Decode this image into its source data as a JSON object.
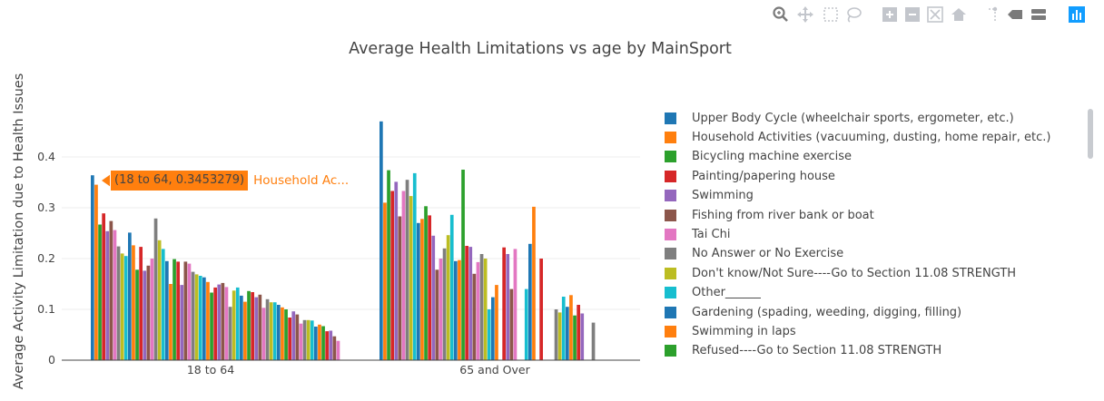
{
  "chart_data": {
    "type": "bar",
    "title": "Average Health Limitations vs age by MainSport",
    "xlabel": "",
    "ylabel": "Average Activity Limitation due to Health Issues",
    "categories": [
      "18 to 64",
      "65 and Over"
    ],
    "yticks": [
      "0",
      "0.1",
      "0.2",
      "0.3",
      "0.4"
    ],
    "ylim": [
      0,
      0.5
    ],
    "grid": true,
    "legend_position": "right",
    "series": [
      {
        "name": "Upper Body Cycle (wheelchair sports, ergometer, etc.)",
        "color": "#1f77b4",
        "values": [
          0.364,
          0.47
        ]
      },
      {
        "name": "Household Activities (vacuuming, dusting, home repair, etc.)",
        "color": "#ff7f0e",
        "values": [
          0.3453279,
          0.31
        ]
      },
      {
        "name": "Bicycling machine exercise",
        "color": "#2ca02c",
        "values": [
          0.267,
          0.374
        ]
      },
      {
        "name": "Painting/papering house",
        "color": "#d62728",
        "values": [
          0.289,
          0.333
        ]
      },
      {
        "name": "Swimming",
        "color": "#9467bd",
        "values": [
          0.254,
          0.351
        ]
      },
      {
        "name": "Fishing from river bank or boat",
        "color": "#8c564b",
        "values": [
          0.274,
          0.283
        ]
      },
      {
        "name": "Tai Chi",
        "color": "#e377c2",
        "values": [
          0.256,
          0.333
        ]
      },
      {
        "name": "No Answer or No Exercise",
        "color": "#7f7f7f",
        "values": [
          0.224,
          0.355
        ]
      },
      {
        "name": "Don't know/Not Sure----Go to Section 11.08 STRENGTH",
        "color": "#bcbd22",
        "values": [
          0.21,
          0.323
        ]
      },
      {
        "name": "Other______",
        "color": "#17becf",
        "values": [
          0.205,
          0.368
        ]
      },
      {
        "name": "Gardening (spading, weeding, digging, filling)",
        "color": "#1f77b4",
        "values": [
          0.251,
          0.27
        ]
      },
      {
        "name": "Swimming in laps",
        "color": "#ff7f0e",
        "values": [
          0.226,
          0.278
        ]
      },
      {
        "name": "Refused----Go to Section 11.08 STRENGTH",
        "color": "#2ca02c",
        "values": [
          0.178,
          0.303
        ]
      }
    ],
    "extra_bars": {
      "colors": [
        "#d62728",
        "#9467bd",
        "#8c564b",
        "#e377c2",
        "#7f7f7f",
        "#bcbd22",
        "#17becf",
        "#1f77b4",
        "#ff7f0e",
        "#2ca02c"
      ],
      "group1": [
        0.223,
        0.176,
        0.186,
        0.2,
        0.279,
        0.236,
        0.219,
        0.195,
        0.15,
        0.199,
        0.194,
        0.148,
        0.194,
        0.19,
        0.174,
        0.169,
        0.166,
        0.163,
        0.154,
        0.133,
        0.143,
        0.149,
        0.152,
        0.144,
        0.105,
        0.137,
        0.143,
        0.127,
        0.115,
        0.136,
        0.134,
        0.124,
        0.129,
        0.103,
        0.12,
        0.114,
        0.114,
        0.109,
        0.104,
        0.1,
        0.084,
        0.096,
        0.09,
        0.072,
        0.079,
        0.079,
        0.078,
        0.066,
        0.07,
        0.067,
        0.057,
        0.058,
        0.047,
        0.038
      ],
      "group2": [
        0.285,
        0.245,
        0.178,
        0.2,
        0.22,
        0.246,
        0.286,
        0.195,
        0.197,
        0.375,
        0.225,
        0.223,
        0.17,
        0.193,
        0.209,
        0.2,
        0.1,
        0.124,
        0.148,
        0,
        0.222,
        0.209,
        0.14,
        0.219,
        0,
        0,
        0.14,
        0.229,
        0.302,
        0,
        0.2,
        0,
        0,
        0,
        0.1,
        0.094,
        0.125,
        0.105,
        0.128,
        0.088,
        0.109,
        0.092,
        0,
        0,
        0.074,
        0,
        0,
        0,
        0,
        0,
        0,
        0,
        0,
        0
      ]
    },
    "hover": {
      "label": "(18 to 64, 0.3453279)",
      "series": "Household Ac..."
    }
  },
  "legend_items": [
    {
      "label": "Upper Body Cycle (wheelchair sports, ergometer, etc.)",
      "color": "#1f77b4"
    },
    {
      "label": "Household Activities (vacuuming, dusting, home repair, etc.)",
      "color": "#ff7f0e"
    },
    {
      "label": "Bicycling machine exercise",
      "color": "#2ca02c"
    },
    {
      "label": "Painting/papering house",
      "color": "#d62728"
    },
    {
      "label": "Swimming",
      "color": "#9467bd"
    },
    {
      "label": "Fishing from river bank or boat",
      "color": "#8c564b"
    },
    {
      "label": "Tai Chi",
      "color": "#e377c2"
    },
    {
      "label": "No Answer or No Exercise",
      "color": "#7f7f7f"
    },
    {
      "label": "Don't know/Not Sure----Go to Section 11.08 STRENGTH",
      "color": "#bcbd22"
    },
    {
      "label": "Other______",
      "color": "#17becf"
    },
    {
      "label": "Gardening (spading, weeding, digging, filling)",
      "color": "#1f77b4"
    },
    {
      "label": "Swimming in laps",
      "color": "#ff7f0e"
    },
    {
      "label": "Refused----Go to Section 11.08 STRENGTH",
      "color": "#2ca02c"
    }
  ],
  "modebar": [
    {
      "icon": "zoom-icon"
    },
    {
      "icon": "pan-icon"
    },
    {
      "icon": "box-select-icon"
    },
    {
      "icon": "lasso-select-icon"
    },
    {
      "icon": "zoom-in-icon"
    },
    {
      "icon": "zoom-out-icon"
    },
    {
      "icon": "autoscale-icon"
    },
    {
      "icon": "reset-axes-icon"
    },
    {
      "icon": "spike-lines-icon"
    },
    {
      "icon": "hover-closest-icon"
    },
    {
      "icon": "hover-compare-icon"
    },
    {
      "icon": "plotly-logo-icon"
    }
  ]
}
